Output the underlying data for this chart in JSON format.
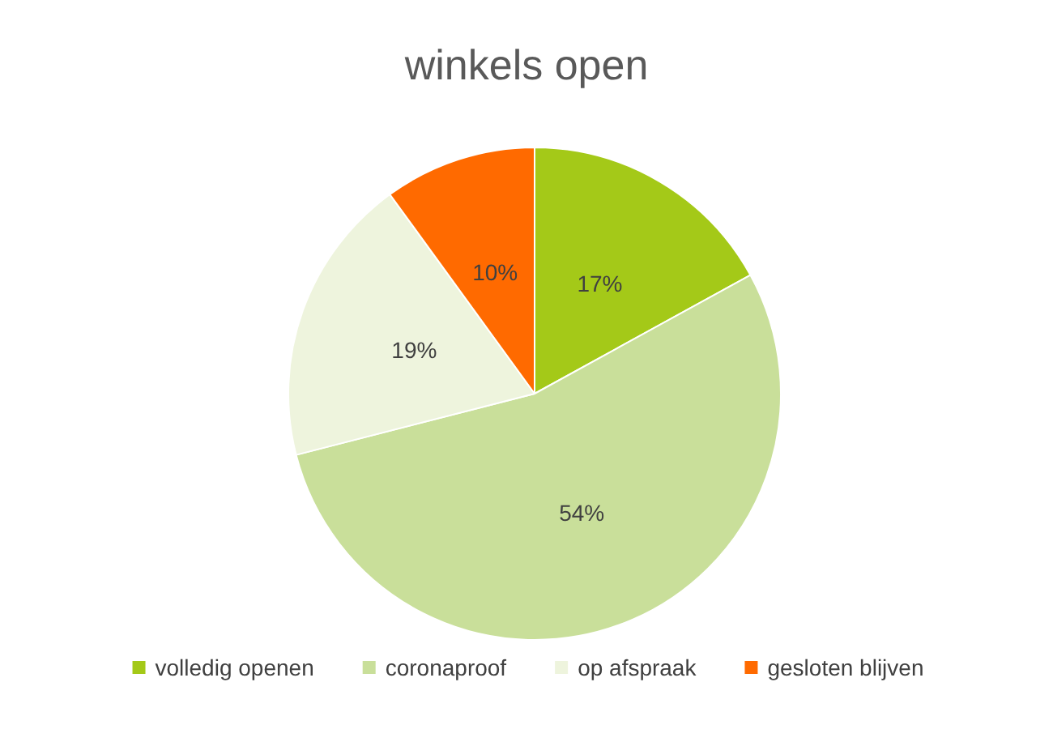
{
  "chart_data": {
    "type": "pie",
    "title": "winkels open",
    "categories": [
      "volledig openen",
      "coronaproof",
      "op afspraak",
      "gesloten blijven"
    ],
    "values": [
      17,
      54,
      19,
      10
    ],
    "colors": [
      "#a4c918",
      "#c9df9a",
      "#eef4dd",
      "#ff6a00"
    ],
    "value_labels": [
      "17%",
      "54%",
      "19%",
      "10%"
    ],
    "legend": "bottom"
  }
}
